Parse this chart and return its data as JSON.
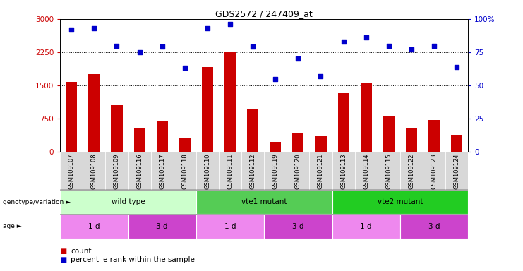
{
  "title": "GDS2572 / 247409_at",
  "samples": [
    "GSM109107",
    "GSM109108",
    "GSM109109",
    "GSM109116",
    "GSM109117",
    "GSM109118",
    "GSM109110",
    "GSM109111",
    "GSM109112",
    "GSM109119",
    "GSM109120",
    "GSM109121",
    "GSM109113",
    "GSM109114",
    "GSM109115",
    "GSM109122",
    "GSM109123",
    "GSM109124"
  ],
  "counts": [
    1580,
    1750,
    1050,
    550,
    680,
    320,
    1920,
    2260,
    950,
    230,
    430,
    350,
    1320,
    1550,
    790,
    550,
    720,
    390
  ],
  "percentiles": [
    92,
    93,
    80,
    75,
    79,
    63,
    93,
    96,
    79,
    55,
    70,
    57,
    83,
    86,
    80,
    77,
    80,
    64
  ],
  "ylim_left": [
    0,
    3000
  ],
  "ylim_right": [
    0,
    100
  ],
  "yticks_left": [
    0,
    750,
    1500,
    2250,
    3000
  ],
  "yticks_right": [
    0,
    25,
    50,
    75,
    100
  ],
  "bar_color": "#cc0000",
  "dot_color": "#0000cc",
  "genotype_groups": [
    {
      "label": "wild type",
      "start": 0,
      "end": 6,
      "color": "#ccffcc"
    },
    {
      "label": "vte1 mutant",
      "start": 6,
      "end": 12,
      "color": "#55cc55"
    },
    {
      "label": "vte2 mutant",
      "start": 12,
      "end": 18,
      "color": "#22cc22"
    }
  ],
  "age_groups": [
    {
      "label": "1 d",
      "start": 0,
      "end": 3,
      "color": "#ee88ee"
    },
    {
      "label": "3 d",
      "start": 3,
      "end": 6,
      "color": "#cc44cc"
    },
    {
      "label": "1 d",
      "start": 6,
      "end": 9,
      "color": "#ee88ee"
    },
    {
      "label": "3 d",
      "start": 9,
      "end": 12,
      "color": "#cc44cc"
    },
    {
      "label": "1 d",
      "start": 12,
      "end": 15,
      "color": "#ee88ee"
    },
    {
      "label": "3 d",
      "start": 15,
      "end": 18,
      "color": "#cc44cc"
    }
  ],
  "legend_count_color": "#cc0000",
  "legend_dot_color": "#0000cc",
  "genotype_label": "genotype/variation",
  "age_label": "age",
  "count_label": "count",
  "percentile_label": "percentile rank within the sample",
  "tick_bg_color": "#d8d8d8"
}
